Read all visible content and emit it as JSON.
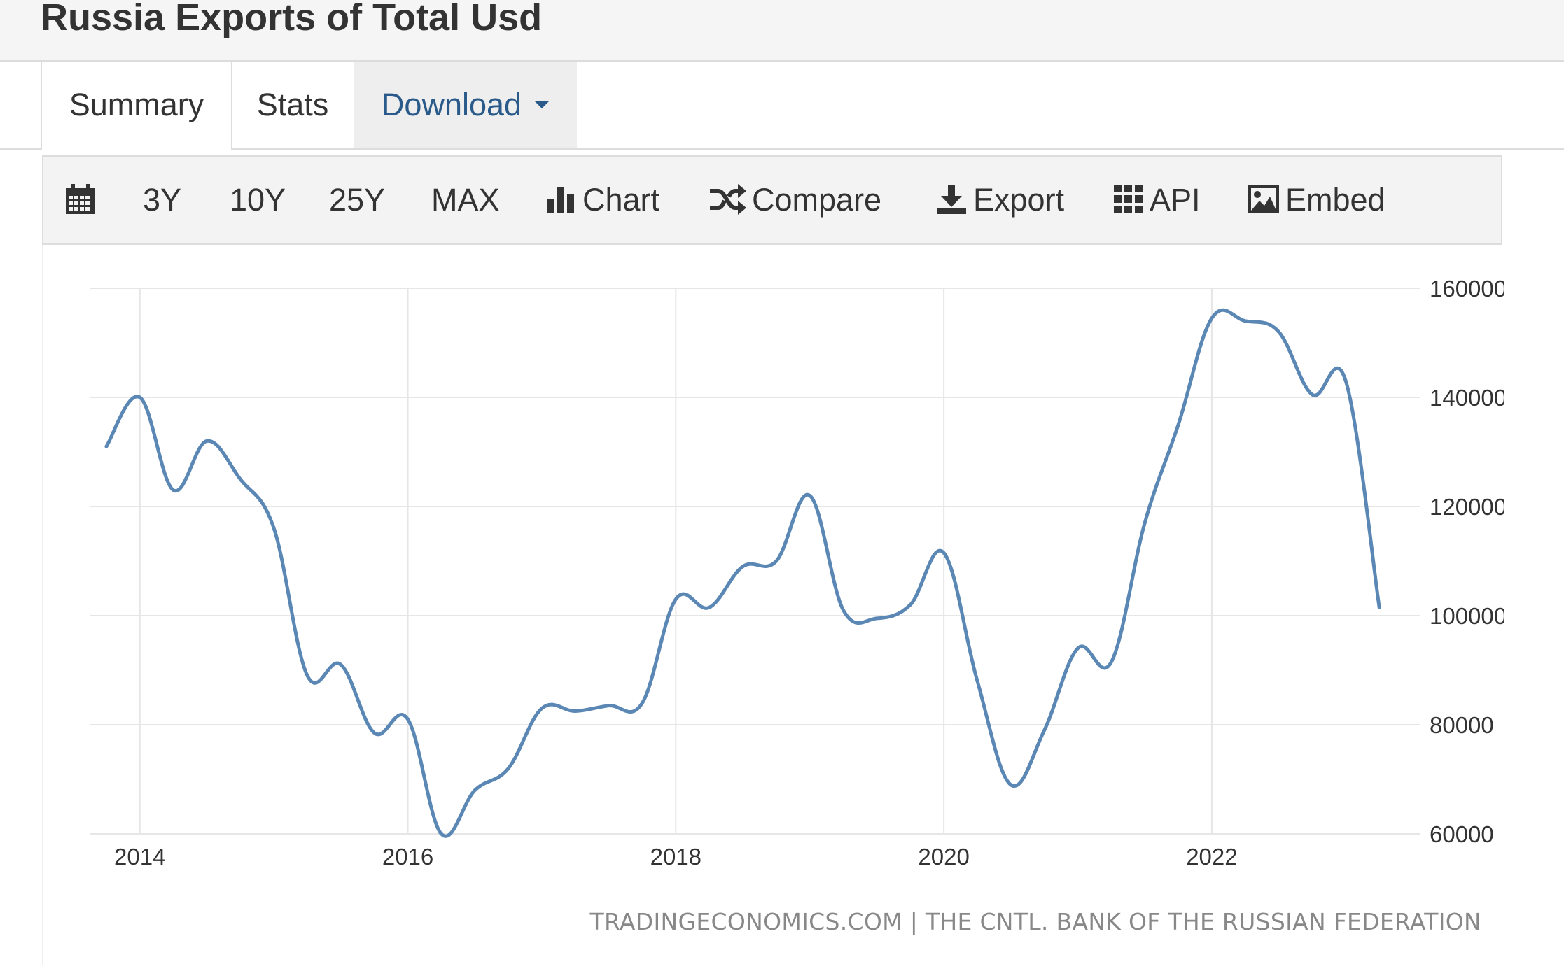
{
  "page": {
    "title": "Russia Exports of Total Usd"
  },
  "tabs": [
    {
      "label": "Summary"
    },
    {
      "label": "Stats"
    },
    {
      "label": "Download"
    }
  ],
  "toolbar": {
    "calendar_icon": "calendar-icon",
    "ranges": [
      "3Y",
      "10Y",
      "25Y",
      "MAX"
    ],
    "chart_label": "Chart",
    "compare_label": "Compare",
    "export_label": "Export",
    "api_label": "API",
    "embed_label": "Embed"
  },
  "colors": {
    "line": "#5b87b5",
    "link": "#2a5a8a",
    "grid": "#e6e6e6"
  },
  "credit": "TRADINGECONOMICS.COM | THE CNTL. BANK OF THE RUSSIAN FEDERATION",
  "chart_data": {
    "type": "line",
    "title": "",
    "xlabel": "",
    "ylabel": "",
    "grid": true,
    "y_axis_position": "right",
    "ylim": [
      60000,
      160000
    ],
    "y_ticks": [
      60000,
      80000,
      100000,
      120000,
      140000,
      160000
    ],
    "x_ticks": [
      "2014",
      "2016",
      "2018",
      "2020",
      "2022"
    ],
    "x_tick_values": [
      2014,
      2016,
      2018,
      2020,
      2022
    ],
    "series": [
      {
        "values": [
          {
            "x": 2013.75,
            "y": 131000
          },
          {
            "x": 2014.0,
            "y": 140000
          },
          {
            "x": 2014.25,
            "y": 123000
          },
          {
            "x": 2014.5,
            "y": 132000
          },
          {
            "x": 2014.75,
            "y": 125000
          },
          {
            "x": 2015.0,
            "y": 116000
          },
          {
            "x": 2015.25,
            "y": 89000
          },
          {
            "x": 2015.5,
            "y": 91000
          },
          {
            "x": 2015.75,
            "y": 78500
          },
          {
            "x": 2016.0,
            "y": 81000
          },
          {
            "x": 2016.25,
            "y": 60000
          },
          {
            "x": 2016.5,
            "y": 68000
          },
          {
            "x": 2016.75,
            "y": 72000
          },
          {
            "x": 2017.0,
            "y": 83000
          },
          {
            "x": 2017.25,
            "y": 82500
          },
          {
            "x": 2017.5,
            "y": 83500
          },
          {
            "x": 2017.75,
            "y": 84000
          },
          {
            "x": 2018.0,
            "y": 103000
          },
          {
            "x": 2018.25,
            "y": 101500
          },
          {
            "x": 2018.5,
            "y": 109000
          },
          {
            "x": 2018.75,
            "y": 110000
          },
          {
            "x": 2019.0,
            "y": 122000
          },
          {
            "x": 2019.25,
            "y": 101000
          },
          {
            "x": 2019.5,
            "y": 99500
          },
          {
            "x": 2019.75,
            "y": 102000
          },
          {
            "x": 2020.0,
            "y": 111500
          },
          {
            "x": 2020.25,
            "y": 88000
          },
          {
            "x": 2020.5,
            "y": 69000
          },
          {
            "x": 2020.75,
            "y": 79000
          },
          {
            "x": 2021.0,
            "y": 94000
          },
          {
            "x": 2021.25,
            "y": 91500
          },
          {
            "x": 2021.5,
            "y": 117000
          },
          {
            "x": 2021.75,
            "y": 135000
          },
          {
            "x": 2022.0,
            "y": 154500
          },
          {
            "x": 2022.25,
            "y": 154000
          },
          {
            "x": 2022.5,
            "y": 152000
          },
          {
            "x": 2022.75,
            "y": 140500
          },
          {
            "x": 2023.0,
            "y": 143000
          },
          {
            "x": 2023.25,
            "y": 101500
          }
        ]
      }
    ]
  }
}
